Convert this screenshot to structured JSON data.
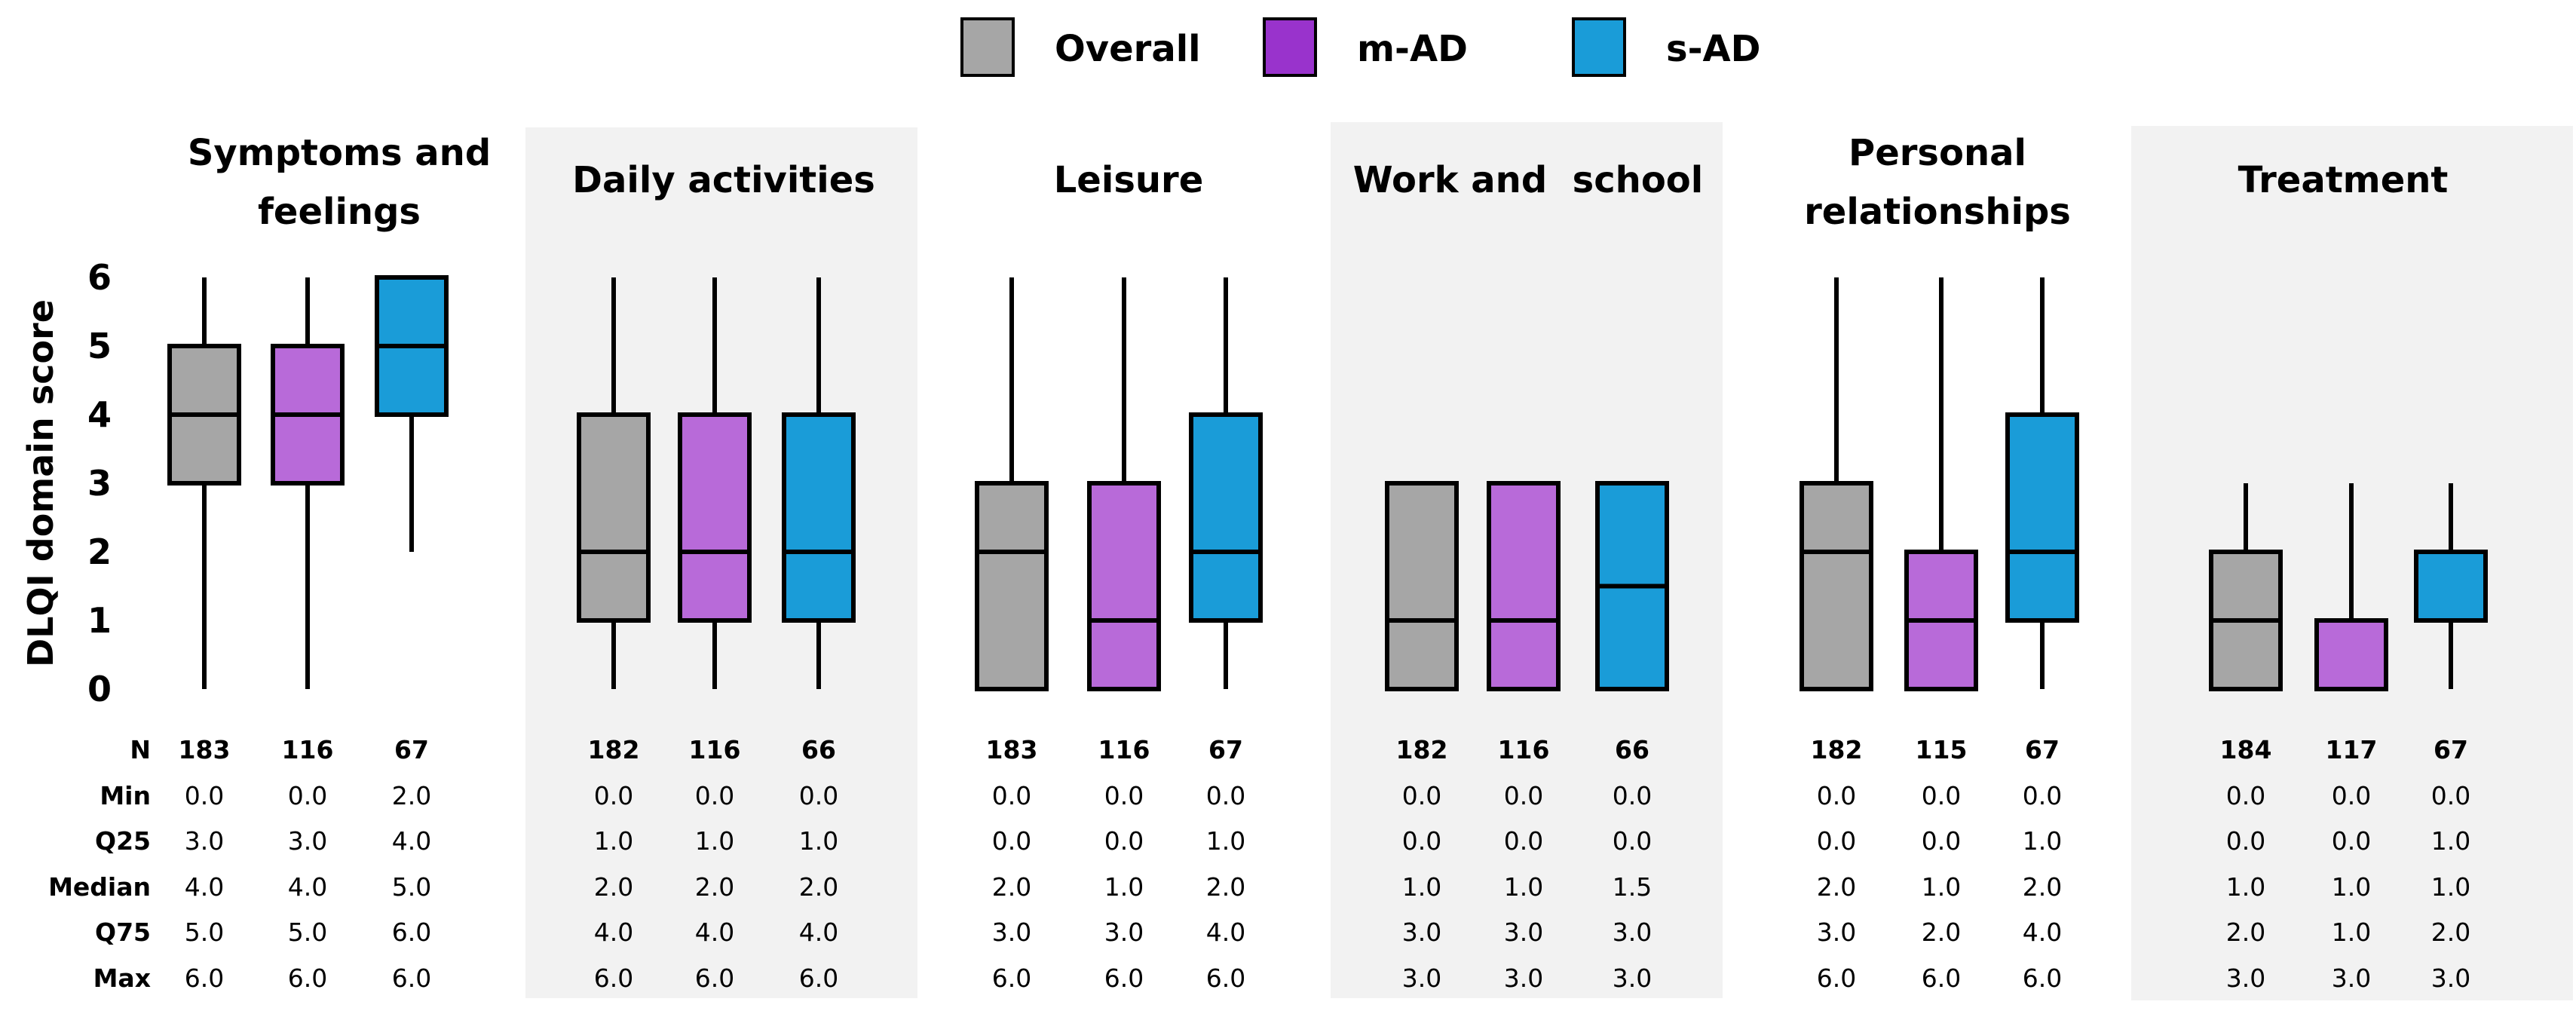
{
  "chart_data": {
    "type": "boxplot",
    "ylabel": "DLQI domain score",
    "ylim": [
      0,
      6
    ],
    "yticks": [
      0,
      1,
      2,
      3,
      4,
      5,
      6
    ],
    "legend_position": "top-center",
    "groups": [
      {
        "name": "Overall",
        "color": "#a6a6a6"
      },
      {
        "name": "m-AD",
        "color": "#b86ad9"
      },
      {
        "name": "s-AD",
        "color": "#1a9cd8"
      }
    ],
    "legend_swatch_colors": [
      "#a6a6a6",
      "#9933cc",
      "#1a9cd8"
    ],
    "stat_labels": [
      "N",
      "Min",
      "Q25",
      "Median",
      "Q75",
      "Max"
    ],
    "panels": [
      {
        "title_lines": [
          "Symptoms and",
          "feelings"
        ],
        "shaded": false,
        "boxes": [
          {
            "group": "Overall",
            "n": "183",
            "min": "0.0",
            "q25": "3.0",
            "median": "4.0",
            "q75": "5.0",
            "max": "6.0"
          },
          {
            "group": "m-AD",
            "n": "116",
            "min": "0.0",
            "q25": "3.0",
            "median": "4.0",
            "q75": "5.0",
            "max": "6.0"
          },
          {
            "group": "s-AD",
            "n": "67",
            "min": "2.0",
            "q25": "4.0",
            "median": "5.0",
            "q75": "6.0",
            "max": "6.0"
          }
        ]
      },
      {
        "title_lines": [
          "Daily activities"
        ],
        "shaded": true,
        "boxes": [
          {
            "group": "Overall",
            "n": "182",
            "min": "0.0",
            "q25": "1.0",
            "median": "2.0",
            "q75": "4.0",
            "max": "6.0"
          },
          {
            "group": "m-AD",
            "n": "116",
            "min": "0.0",
            "q25": "1.0",
            "median": "2.0",
            "q75": "4.0",
            "max": "6.0"
          },
          {
            "group": "s-AD",
            "n": "66",
            "min": "0.0",
            "q25": "1.0",
            "median": "2.0",
            "q75": "4.0",
            "max": "6.0"
          }
        ]
      },
      {
        "title_lines": [
          "Leisure"
        ],
        "shaded": false,
        "boxes": [
          {
            "group": "Overall",
            "n": "183",
            "min": "0.0",
            "q25": "0.0",
            "median": "2.0",
            "q75": "3.0",
            "max": "6.0"
          },
          {
            "group": "m-AD",
            "n": "116",
            "min": "0.0",
            "q25": "0.0",
            "median": "1.0",
            "q75": "3.0",
            "max": "6.0"
          },
          {
            "group": "s-AD",
            "n": "67",
            "min": "0.0",
            "q25": "1.0",
            "median": "2.0",
            "q75": "4.0",
            "max": "6.0"
          }
        ]
      },
      {
        "title_lines": [
          "Work and  school"
        ],
        "shaded": true,
        "boxes": [
          {
            "group": "Overall",
            "n": "182",
            "min": "0.0",
            "q25": "0.0",
            "median": "1.0",
            "q75": "3.0",
            "max": "3.0"
          },
          {
            "group": "m-AD",
            "n": "116",
            "min": "0.0",
            "q25": "0.0",
            "median": "1.0",
            "q75": "3.0",
            "max": "3.0"
          },
          {
            "group": "s-AD",
            "n": "66",
            "min": "0.0",
            "q25": "0.0",
            "median": "1.5",
            "q75": "3.0",
            "max": "3.0"
          }
        ]
      },
      {
        "title_lines": [
          "Personal",
          "relationships"
        ],
        "shaded": false,
        "boxes": [
          {
            "group": "Overall",
            "n": "182",
            "min": "0.0",
            "q25": "0.0",
            "median": "2.0",
            "q75": "3.0",
            "max": "6.0"
          },
          {
            "group": "m-AD",
            "n": "115",
            "min": "0.0",
            "q25": "0.0",
            "median": "1.0",
            "q75": "2.0",
            "max": "6.0"
          },
          {
            "group": "s-AD",
            "n": "67",
            "min": "0.0",
            "q25": "1.0",
            "median": "2.0",
            "q75": "4.0",
            "max": "6.0"
          }
        ]
      },
      {
        "title_lines": [
          "Treatment"
        ],
        "shaded": true,
        "boxes": [
          {
            "group": "Overall",
            "n": "184",
            "min": "0.0",
            "q25": "0.0",
            "median": "1.0",
            "q75": "2.0",
            "max": "3.0"
          },
          {
            "group": "m-AD",
            "n": "117",
            "min": "0.0",
            "q25": "0.0",
            "median": "1.0",
            "q75": "1.0",
            "max": "3.0"
          },
          {
            "group": "s-AD",
            "n": "67",
            "min": "0.0",
            "q25": "1.0",
            "median": "1.0",
            "q75": "2.0",
            "max": "3.0"
          }
        ]
      }
    ]
  }
}
